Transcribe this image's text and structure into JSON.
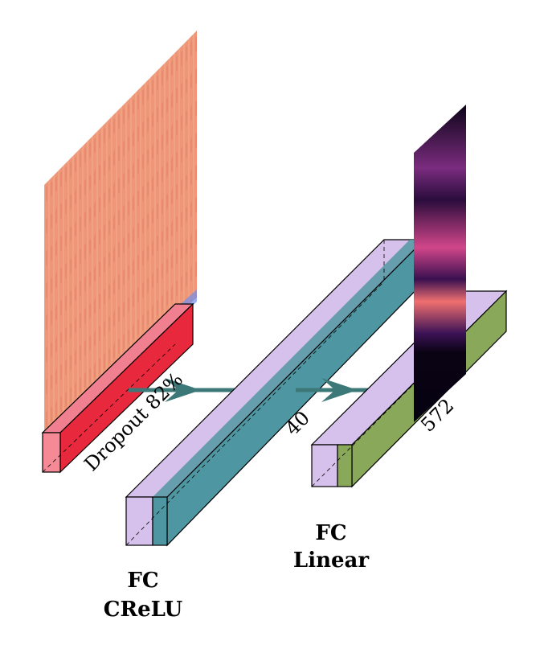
{
  "layers": [
    {
      "label": "Dropout 82%"
    },
    {
      "size": "40",
      "title": "FC",
      "subtitle": "CReLU"
    },
    {
      "size": "572",
      "title": "FC",
      "subtitle": "Linear"
    }
  ]
}
